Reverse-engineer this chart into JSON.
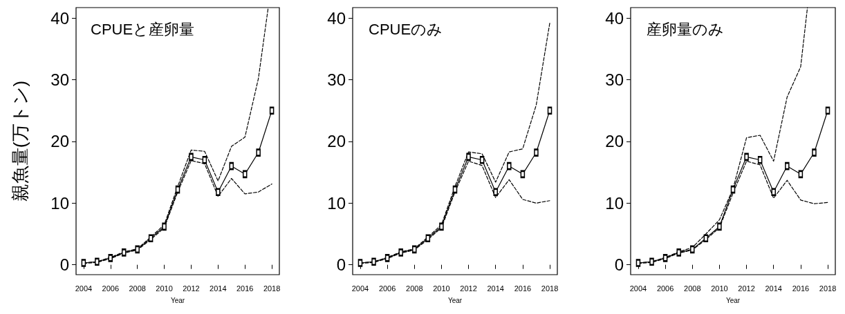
{
  "chart_data": [
    {
      "type": "line",
      "title": "CPUEと産卵量",
      "xlabel": "Year",
      "ylabel": "親魚量(万トン)",
      "x": [
        2004,
        2005,
        2006,
        2007,
        2008,
        2009,
        2010,
        2011,
        2012,
        2013,
        2014,
        2015,
        2016,
        2017,
        2018
      ],
      "xlim": [
        2003.44,
        2018.56
      ],
      "xticks": [
        2004,
        2006,
        2008,
        2010,
        2012,
        2014,
        2016,
        2018
      ],
      "ylim": [
        -1.6,
        41.7
      ],
      "yticks": [
        0,
        10,
        20,
        30,
        40
      ],
      "grid": false,
      "series": [
        {
          "color": "#000000",
          "marker": "square",
          "line_style": "solid",
          "values": [
            0.3,
            0.5,
            1.1,
            2.0,
            2.5,
            4.3,
            6.2,
            12.2,
            17.5,
            17.0,
            11.8,
            16.0,
            14.7,
            18.2,
            25.0
          ]
        },
        {
          "color": "#000000",
          "marker": "none",
          "line_style": "dashed",
          "x": [
            2004,
            2005,
            2006,
            2007,
            2008,
            2009,
            2010,
            2011,
            2012,
            2013,
            2014,
            2015,
            2016,
            2017,
            2017.73
          ],
          "values": [
            0.3,
            0.5,
            1.2,
            2.1,
            2.6,
            4.5,
            6.5,
            12.7,
            18.6,
            18.4,
            13.6,
            19.2,
            20.7,
            30.2,
            41.7
          ]
        },
        {
          "color": "#000000",
          "marker": "none",
          "line_style": "dashed",
          "values": [
            0.2,
            0.4,
            1.0,
            1.9,
            2.4,
            4.1,
            6.0,
            11.8,
            16.9,
            16.4,
            11.1,
            14.0,
            11.5,
            11.8,
            13.1
          ]
        }
      ]
    },
    {
      "type": "line",
      "title": "CPUEのみ",
      "xlabel": "Year",
      "x": [
        2004,
        2005,
        2006,
        2007,
        2008,
        2009,
        2010,
        2011,
        2012,
        2013,
        2014,
        2015,
        2016,
        2017,
        2018
      ],
      "xlim": [
        2003.44,
        2018.56
      ],
      "xticks": [
        2004,
        2006,
        2008,
        2010,
        2012,
        2014,
        2016,
        2018
      ],
      "ylim": [
        -1.6,
        41.7
      ],
      "yticks": [
        0,
        10,
        20,
        30,
        40
      ],
      "grid": false,
      "series": [
        {
          "color": "#000000",
          "marker": "square",
          "line_style": "solid",
          "values": [
            0.3,
            0.5,
            1.1,
            2.0,
            2.5,
            4.3,
            6.2,
            12.2,
            17.5,
            17.0,
            11.8,
            16.0,
            14.7,
            18.2,
            25.0
          ]
        },
        {
          "color": "#000000",
          "marker": "none",
          "line_style": "dashed",
          "values": [
            0.3,
            0.5,
            1.2,
            2.1,
            2.6,
            4.5,
            6.5,
            12.7,
            18.3,
            18.0,
            13.4,
            18.3,
            18.8,
            25.9,
            39.2
          ]
        },
        {
          "color": "#000000",
          "marker": "none",
          "line_style": "dashed",
          "values": [
            0.2,
            0.4,
            1.0,
            1.9,
            2.4,
            4.1,
            6.0,
            11.8,
            16.8,
            16.1,
            10.9,
            13.8,
            10.6,
            10.0,
            10.4
          ]
        }
      ]
    },
    {
      "type": "line",
      "title": "産卵量のみ",
      "xlabel": "Year",
      "x": [
        2004,
        2005,
        2006,
        2007,
        2008,
        2009,
        2010,
        2011,
        2012,
        2013,
        2014,
        2015,
        2016,
        2017,
        2018
      ],
      "xlim": [
        2003.44,
        2018.56
      ],
      "xticks": [
        2004,
        2006,
        2008,
        2010,
        2012,
        2014,
        2016,
        2018
      ],
      "ylim": [
        -1.6,
        41.7
      ],
      "yticks": [
        0,
        10,
        20,
        30,
        40
      ],
      "grid": false,
      "series": [
        {
          "color": "#000000",
          "marker": "square",
          "line_style": "solid",
          "values": [
            0.3,
            0.5,
            1.1,
            2.0,
            2.5,
            4.3,
            6.2,
            12.2,
            17.5,
            17.0,
            11.8,
            16.0,
            14.7,
            18.2,
            25.0
          ]
        },
        {
          "color": "#000000",
          "marker": "none",
          "line_style": "dashed",
          "x": [
            2004,
            2005,
            2006,
            2007,
            2008,
            2009,
            2010,
            2011,
            2012,
            2013,
            2014,
            2015,
            2016,
            2016.5
          ],
          "values": [
            0.3,
            0.5,
            1.2,
            2.1,
            2.8,
            5.0,
            7.3,
            12.3,
            20.6,
            21.0,
            16.8,
            27.2,
            32.1,
            41.7
          ]
        },
        {
          "color": "#000000",
          "marker": "none",
          "line_style": "dashed",
          "values": [
            0.2,
            0.4,
            1.0,
            1.9,
            2.4,
            4.1,
            6.0,
            11.6,
            16.8,
            16.2,
            10.8,
            13.7,
            10.5,
            9.9,
            10.1
          ]
        }
      ]
    }
  ]
}
